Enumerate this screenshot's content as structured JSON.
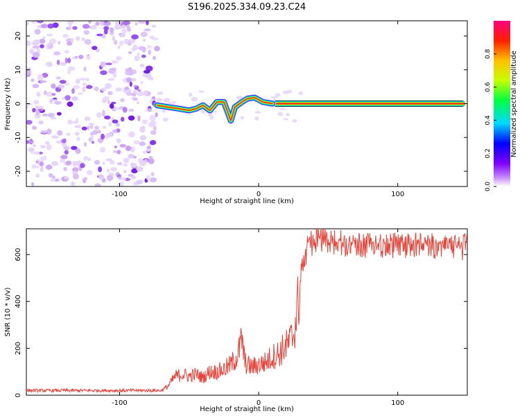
{
  "chart_data": [
    {
      "type": "heatmap",
      "title": "S196.2025.334.09.23.C24",
      "xlabel": "Height of straight line (km)",
      "ylabel": "Frequency (Hz)",
      "xlim": [
        -167,
        150
      ],
      "ylim": [
        -24.5,
        24.5
      ],
      "x_ticks": [
        -100,
        0,
        100
      ],
      "y_ticks": [
        -20,
        -10,
        0,
        10,
        20
      ],
      "colorbar": {
        "label": "Normalized spectral amplitude",
        "range": [
          0,
          1
        ],
        "ticks": [
          "0.0",
          "0.2",
          "0.4",
          "0.6",
          "0.8"
        ]
      },
      "regions": [
        {
          "description": "noise",
          "x_range": [
            -167,
            -73
          ],
          "y_range": [
            -24.5,
            24.5
          ],
          "amplitude_range": [
            0.0,
            0.2
          ]
        },
        {
          "description": "signal band",
          "x_range": [
            -73,
            150
          ],
          "center_frequency_hz": 0,
          "amplitude_range": [
            0.4,
            1.0
          ]
        }
      ],
      "ridge": [
        {
          "x": -73,
          "y": -0.5
        },
        {
          "x": -65,
          "y": -1.0
        },
        {
          "x": -57,
          "y": -1.5
        },
        {
          "x": -50,
          "y": -2.0
        },
        {
          "x": -45,
          "y": -1.5
        },
        {
          "x": -40,
          "y": -0.5
        },
        {
          "x": -35,
          "y": -2.0
        },
        {
          "x": -30,
          "y": 0.5
        },
        {
          "x": -25,
          "y": 0.5
        },
        {
          "x": -20,
          "y": -5.0
        },
        {
          "x": -17,
          "y": -1.0
        },
        {
          "x": -12,
          "y": 0.5
        },
        {
          "x": -8,
          "y": 1.5
        },
        {
          "x": -3,
          "y": 1.8
        },
        {
          "x": 3,
          "y": 0.5
        },
        {
          "x": 10,
          "y": 0
        },
        {
          "x": 150,
          "y": 0
        }
      ]
    },
    {
      "type": "line",
      "xlabel": "Height of straight line (km)",
      "ylabel": "SNR (10 * v/v)",
      "xlim": [
        -167,
        150
      ],
      "ylim": [
        0,
        710
      ],
      "x_ticks": [
        -100,
        0,
        100
      ],
      "y_ticks": [
        0,
        200,
        400,
        600
      ],
      "color": "#e8443a",
      "x": [
        -167,
        -160,
        -150,
        -140,
        -130,
        -120,
        -110,
        -100,
        -90,
        -80,
        -70,
        -65,
        -60,
        -55,
        -50,
        -45,
        -40,
        -35,
        -30,
        -25,
        -20,
        -15,
        -12,
        -10,
        -8,
        -5,
        0,
        5,
        10,
        15,
        18,
        20,
        22,
        25,
        27,
        28,
        30,
        32,
        34,
        36,
        40,
        45,
        50,
        60,
        70,
        80,
        90,
        100,
        110,
        120,
        130,
        140,
        150
      ],
      "y": [
        20,
        20,
        20,
        20,
        20,
        20,
        20,
        20,
        20,
        20,
        20,
        40,
        80,
        90,
        80,
        90,
        75,
        100,
        100,
        110,
        130,
        170,
        240,
        140,
        130,
        120,
        130,
        140,
        165,
        180,
        200,
        210,
        225,
        260,
        330,
        380,
        470,
        540,
        590,
        620,
        640,
        650,
        630,
        630,
        625,
        620,
        620,
        620,
        625,
        615,
        620,
        610,
        615
      ]
    }
  ]
}
